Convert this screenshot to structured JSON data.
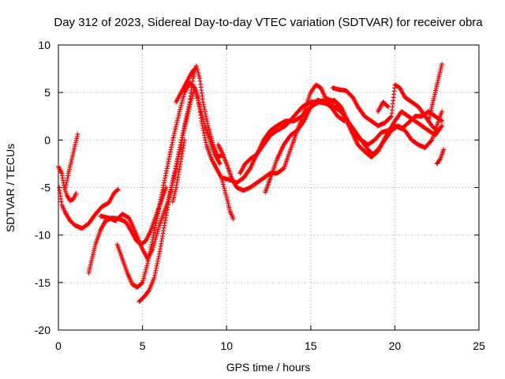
{
  "chart_data": {
    "type": "scatter",
    "title": "Day 312 of 2023, Sidereal Day-to-day VTEC variation (SDTVAR) for receiver obra",
    "xlabel": "GPS time / hours",
    "ylabel": "SDTVAR / TECUs",
    "xlim": [
      0,
      25
    ],
    "ylim": [
      -20,
      10
    ],
    "x_ticks": [
      0,
      5,
      10,
      15,
      20,
      25
    ],
    "y_ticks": [
      -20,
      -15,
      -10,
      -5,
      0,
      5,
      10
    ],
    "x_tick_labels": [
      "0",
      "5",
      "10",
      "15",
      "20",
      "25"
    ],
    "y_tick_labels": [
      "-20",
      "-15",
      "-10",
      "-5",
      "0",
      "5",
      "10"
    ],
    "grid": true,
    "marker": "plus",
    "color": "#ff0000",
    "series": [
      {
        "points": [
          [
            0,
            -2.8
          ],
          [
            0.2,
            -3.5
          ],
          [
            0.35,
            -5.0
          ],
          [
            0.5,
            -5.8
          ],
          [
            0.7,
            -6.4
          ],
          [
            0.9,
            -6.2
          ],
          [
            1.05,
            -5.6
          ]
        ]
      },
      {
        "points": [
          [
            0.4,
            -5.2
          ],
          [
            0.6,
            -3.5
          ],
          [
            0.8,
            -2.0
          ],
          [
            1.0,
            -0.5
          ],
          [
            1.15,
            0.6
          ]
        ]
      },
      {
        "points": [
          [
            0.05,
            -5.0
          ],
          [
            0.2,
            -6.8
          ],
          [
            0.4,
            -7.6
          ],
          [
            0.7,
            -8.5
          ],
          [
            1.0,
            -9.0
          ],
          [
            1.4,
            -9.3
          ],
          [
            1.8,
            -8.8
          ],
          [
            2.2,
            -7.8
          ],
          [
            2.6,
            -7.0
          ],
          [
            3.0,
            -6.6
          ],
          [
            3.3,
            -5.6
          ],
          [
            3.55,
            -5.2
          ]
        ]
      },
      {
        "points": [
          [
            1.8,
            -14.0
          ],
          [
            2.0,
            -12.5
          ],
          [
            2.2,
            -11.0
          ],
          [
            2.5,
            -9.5
          ],
          [
            2.8,
            -8.5
          ],
          [
            3.2,
            -8.2
          ],
          [
            3.6,
            -8.3
          ],
          [
            4.0,
            -8.6
          ],
          [
            4.3,
            -9.5
          ],
          [
            4.6,
            -10.5
          ],
          [
            4.9,
            -11.0
          ],
          [
            5.2,
            -10.6
          ],
          [
            5.5,
            -9.5
          ],
          [
            5.8,
            -8.0
          ],
          [
            6.1,
            -6.5
          ],
          [
            6.4,
            -5.0
          ]
        ]
      },
      {
        "points": [
          [
            2.5,
            -8.0
          ],
          [
            3.0,
            -8.2
          ],
          [
            3.4,
            -8.5
          ],
          [
            3.8,
            -7.8
          ],
          [
            4.2,
            -8.2
          ],
          [
            4.6,
            -9.8
          ],
          [
            5.0,
            -11.5
          ],
          [
            5.3,
            -12.5
          ],
          [
            5.6,
            -11.5
          ],
          [
            6.0,
            -9.0
          ],
          [
            6.5,
            -6.5
          ],
          [
            7.0,
            -3.0
          ],
          [
            7.4,
            0.5
          ],
          [
            7.8,
            3.5
          ],
          [
            8.1,
            5.5
          ],
          [
            8.3,
            4.5
          ],
          [
            8.5,
            2.0
          ],
          [
            8.8,
            -0.5
          ],
          [
            9.1,
            -2.0
          ],
          [
            9.4,
            -3.0
          ],
          [
            9.7,
            -4.0
          ],
          [
            10.0,
            -6.0
          ],
          [
            10.2,
            -7.5
          ],
          [
            10.4,
            -8.3
          ]
        ]
      },
      {
        "points": [
          [
            3.5,
            -11.0
          ],
          [
            3.8,
            -12.5
          ],
          [
            4.1,
            -14.0
          ],
          [
            4.4,
            -15.2
          ],
          [
            4.7,
            -15.5
          ],
          [
            5.0,
            -15.0
          ],
          [
            5.3,
            -13.0
          ],
          [
            5.6,
            -10.5
          ],
          [
            6.0,
            -7.0
          ],
          [
            6.4,
            -3.5
          ],
          [
            6.8,
            0.0
          ],
          [
            7.2,
            3.0
          ],
          [
            7.5,
            5.0
          ],
          [
            7.8,
            6.0
          ],
          [
            8.1,
            5.5
          ],
          [
            8.4,
            3.5
          ],
          [
            8.7,
            1.5
          ],
          [
            9.0,
            0.0
          ],
          [
            9.3,
            -1.5
          ],
          [
            9.6,
            -2.5
          ]
        ]
      },
      {
        "points": [
          [
            4.8,
            -17.0
          ],
          [
            5.1,
            -16.5
          ],
          [
            5.4,
            -15.8
          ],
          [
            5.7,
            -14.5
          ],
          [
            6.0,
            -12.0
          ],
          [
            6.3,
            -9.0
          ],
          [
            6.6,
            -6.0
          ],
          [
            6.9,
            -3.5
          ],
          [
            7.2,
            -1.0
          ],
          [
            7.5,
            1.5
          ],
          [
            7.8,
            4.0
          ],
          [
            8.0,
            6.5
          ],
          [
            8.2,
            7.8
          ],
          [
            8.4,
            6.5
          ],
          [
            8.6,
            4.0
          ],
          [
            8.9,
            1.5
          ],
          [
            9.2,
            -0.5
          ],
          [
            9.5,
            -1.8
          ],
          [
            9.8,
            -1.5
          ]
        ]
      },
      {
        "points": [
          [
            6.8,
            -6.5
          ],
          [
            7.0,
            -5.0
          ],
          [
            7.3,
            -2.0
          ],
          [
            7.5,
            0.0
          ]
        ]
      },
      {
        "points": [
          [
            7.0,
            4.0
          ],
          [
            7.3,
            5.0
          ],
          [
            7.6,
            6.0
          ],
          [
            7.9,
            7.0
          ],
          [
            8.1,
            7.5
          ]
        ]
      },
      {
        "points": [
          [
            9.5,
            -0.5
          ],
          [
            9.7,
            -1.2
          ],
          [
            10.0,
            -2.5
          ],
          [
            10.3,
            -4.0
          ],
          [
            10.6,
            -5.0
          ],
          [
            11.0,
            -5.3
          ],
          [
            11.4,
            -5.0
          ],
          [
            11.8,
            -4.5
          ],
          [
            12.2,
            -4.0
          ],
          [
            12.6,
            -3.5
          ],
          [
            13.0,
            -3.5
          ],
          [
            13.4,
            -3.0
          ],
          [
            13.8,
            -1.0
          ],
          [
            14.2,
            1.0
          ],
          [
            14.6,
            3.0
          ],
          [
            15.0,
            5.0
          ],
          [
            15.3,
            5.8
          ],
          [
            15.6,
            5.5
          ],
          [
            16.0,
            4.0
          ],
          [
            16.4,
            3.5
          ],
          [
            16.8,
            3.0
          ],
          [
            17.2,
            2.0
          ],
          [
            17.6,
            1.0
          ],
          [
            18.0,
            0.0
          ],
          [
            18.4,
            -1.0
          ],
          [
            18.7,
            -1.5
          ],
          [
            19.0,
            -1.0
          ],
          [
            19.4,
            0.0
          ],
          [
            19.8,
            1.0
          ],
          [
            20.2,
            1.5
          ],
          [
            20.6,
            1.0
          ],
          [
            21.0,
            0.0
          ],
          [
            21.4,
            -0.5
          ],
          [
            21.8,
            -0.8
          ],
          [
            22.2,
            0.0
          ],
          [
            22.6,
            2.0
          ],
          [
            22.8,
            3.0
          ]
        ]
      },
      {
        "points": [
          [
            9.8,
            -4.0
          ],
          [
            10.2,
            -4.2
          ],
          [
            10.6,
            -4.5
          ],
          [
            11.0,
            -4.0
          ],
          [
            11.4,
            -3.0
          ],
          [
            11.8,
            -1.5
          ],
          [
            12.2,
            -0.5
          ],
          [
            12.6,
            0.5
          ],
          [
            13.0,
            1.0
          ],
          [
            13.5,
            1.5
          ],
          [
            14.0,
            2.5
          ],
          [
            14.5,
            3.5
          ],
          [
            15.0,
            4.0
          ],
          [
            15.5,
            4.0
          ],
          [
            16.0,
            3.8
          ],
          [
            16.4,
            4.2
          ],
          [
            16.8,
            3.5
          ],
          [
            17.2,
            2.0
          ],
          [
            17.6,
            0.5
          ],
          [
            18.0,
            0.0
          ],
          [
            18.4,
            -0.5
          ],
          [
            18.8,
            0.0
          ],
          [
            19.2,
            0.8
          ],
          [
            19.6,
            1.0
          ],
          [
            20.0,
            1.5
          ],
          [
            20.4,
            1.2
          ],
          [
            20.8,
            1.8
          ],
          [
            21.2,
            2.5
          ],
          [
            21.6,
            2.5
          ],
          [
            22.0,
            3.0
          ],
          [
            22.4,
            2.5
          ],
          [
            22.8,
            2.0
          ]
        ]
      },
      {
        "points": [
          [
            10.8,
            -3.5
          ],
          [
            11.1,
            -2.5
          ],
          [
            11.4,
            -2.0
          ],
          [
            11.8,
            -1.5
          ],
          [
            12.2,
            0.0
          ],
          [
            12.6,
            1.0
          ],
          [
            13.0,
            1.5
          ],
          [
            13.5,
            2.0
          ],
          [
            14.0,
            2.0
          ],
          [
            14.5,
            2.5
          ],
          [
            15.0,
            3.5
          ],
          [
            15.5,
            4.0
          ],
          [
            16.0,
            4.3
          ],
          [
            16.5,
            4.0
          ],
          [
            17.0,
            2.5
          ],
          [
            17.4,
            1.0
          ],
          [
            17.8,
            -0.5
          ],
          [
            18.2,
            -1.2
          ],
          [
            18.6,
            -1.8
          ],
          [
            19.0,
            -1.2
          ],
          [
            19.5,
            0.5
          ],
          [
            20.0,
            2.0
          ],
          [
            20.4,
            3.0
          ],
          [
            20.8,
            2.5
          ],
          [
            21.2,
            2.0
          ],
          [
            21.6,
            1.5
          ],
          [
            22.0,
            1.0
          ],
          [
            22.4,
            0.5
          ],
          [
            22.8,
            1.5
          ]
        ]
      },
      {
        "points": [
          [
            12.3,
            -5.5
          ],
          [
            12.6,
            -4.0
          ],
          [
            13.0,
            -2.0
          ],
          [
            13.4,
            -0.5
          ],
          [
            13.8,
            0.5
          ],
          [
            14.2,
            1.0
          ],
          [
            14.6,
            2.0
          ],
          [
            15.0,
            3.5
          ],
          [
            15.4,
            4.2
          ],
          [
            15.8,
            4.0
          ],
          [
            16.2,
            3.5
          ],
          [
            16.6,
            2.5
          ],
          [
            17.0,
            2.0
          ]
        ]
      },
      {
        "points": [
          [
            16.3,
            5.5
          ],
          [
            16.7,
            5.3
          ],
          [
            17.1,
            5.2
          ],
          [
            17.5,
            4.5
          ],
          [
            17.8,
            3.5
          ],
          [
            18.2,
            2.5
          ],
          [
            18.6,
            2.0
          ],
          [
            19.0,
            1.5
          ],
          [
            19.4,
            1.8
          ],
          [
            19.8,
            2.5
          ],
          [
            20.0,
            5.8
          ],
          [
            20.3,
            5.5
          ],
          [
            20.6,
            4.5
          ],
          [
            21.0,
            4.0
          ],
          [
            21.4,
            3.5
          ],
          [
            21.8,
            2.5
          ],
          [
            22.2,
            1.5
          ],
          [
            22.5,
            1.0
          ]
        ]
      },
      {
        "points": [
          [
            19.0,
            3.0
          ],
          [
            19.3,
            4.0
          ],
          [
            19.6,
            3.5
          ]
        ]
      },
      {
        "points": [
          [
            22.0,
            2.0
          ],
          [
            22.2,
            3.5
          ],
          [
            22.4,
            5.0
          ],
          [
            22.6,
            6.5
          ],
          [
            22.8,
            8.0
          ]
        ]
      },
      {
        "points": [
          [
            22.5,
            -2.5
          ],
          [
            22.7,
            -2.0
          ],
          [
            22.8,
            -1.5
          ],
          [
            22.9,
            -1.0
          ]
        ]
      }
    ]
  }
}
